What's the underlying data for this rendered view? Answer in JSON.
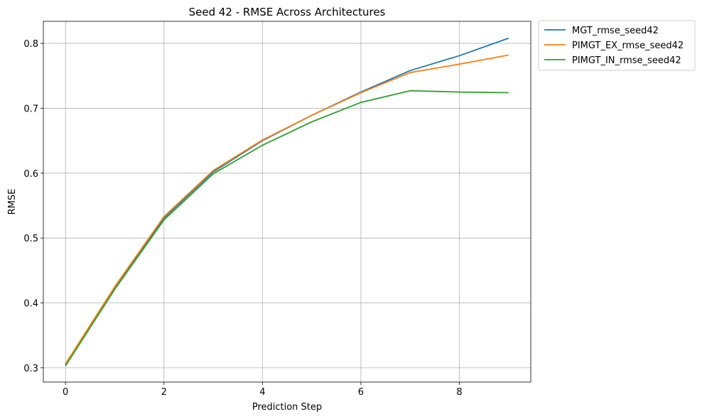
{
  "chart_data": {
    "type": "line",
    "title": "Seed 42 - RMSE Across Architectures",
    "xlabel": "Prediction Step",
    "ylabel": "RMSE",
    "x": [
      0,
      1,
      2,
      3,
      4,
      5,
      6,
      7,
      8,
      9
    ],
    "xlim": [
      -0.45,
      9.45
    ],
    "ylim": [
      0.278,
      0.834
    ],
    "xticks": [
      0,
      2,
      4,
      6,
      8
    ],
    "yticks": [
      0.3,
      0.4,
      0.5,
      0.6,
      0.7,
      0.8
    ],
    "xtick_labels": [
      "0",
      "2",
      "4",
      "6",
      "8"
    ],
    "ytick_labels": [
      "0.3",
      "0.4",
      "0.5",
      "0.6",
      "0.7",
      "0.8"
    ],
    "grid": true,
    "legend_position": "outside-top-right",
    "series": [
      {
        "name": "MGT_rmse_seed42",
        "color": "#1f77b4",
        "values": [
          0.305,
          0.424,
          0.531,
          0.602,
          0.65,
          0.689,
          0.725,
          0.758,
          0.781,
          0.808
        ]
      },
      {
        "name": "PIMGT_EX_rmse_seed42",
        "color": "#ff7f0e",
        "values": [
          0.306,
          0.425,
          0.533,
          0.604,
          0.651,
          0.689,
          0.724,
          0.755,
          0.768,
          0.782
        ]
      },
      {
        "name": "PIMGT_IN_rmse_seed42",
        "color": "#2ca02c",
        "values": [
          0.303,
          0.421,
          0.528,
          0.599,
          0.643,
          0.679,
          0.709,
          0.727,
          0.725,
          0.724
        ]
      }
    ]
  }
}
